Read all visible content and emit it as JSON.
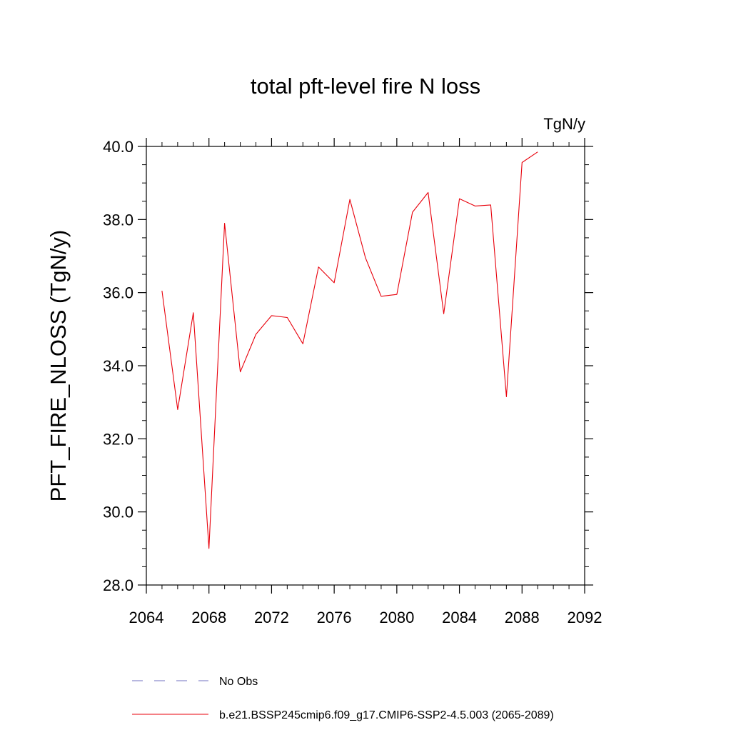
{
  "chart_data": {
    "type": "line",
    "title": "total pft-level fire N loss",
    "units_label": "TgN/y",
    "ylabel": "PFT_FIRE_NLOSS  (TgN/y)",
    "xlabel": "",
    "xlim": [
      2064,
      2092
    ],
    "ylim": [
      28.0,
      40.0
    ],
    "x_ticks": [
      2064,
      2068,
      2072,
      2076,
      2080,
      2084,
      2088,
      2092
    ],
    "x_tick_labels": [
      "2064",
      "2068",
      "2072",
      "2076",
      "2080",
      "2084",
      "2088",
      "2092"
    ],
    "y_ticks": [
      28.0,
      30.0,
      32.0,
      34.0,
      36.0,
      38.0,
      40.0
    ],
    "y_tick_labels": [
      "28.0",
      "30.0",
      "32.0",
      "34.0",
      "36.0",
      "38.0",
      "40.0"
    ],
    "grid": false,
    "legend_position": "bottom",
    "series": [
      {
        "name": "b.e21.BSSP245cmip6.f09_g17.CMIP6-SSP2-4.5.003 (2065-2089)",
        "color": "#e8000b",
        "style": "solid",
        "x": [
          2065,
          2066,
          2067,
          2068,
          2069,
          2070,
          2071,
          2072,
          2073,
          2074,
          2075,
          2076,
          2077,
          2078,
          2079,
          2080,
          2081,
          2082,
          2083,
          2084,
          2085,
          2086,
          2087,
          2088,
          2089
        ],
        "values": [
          36.05,
          32.8,
          35.45,
          29.0,
          37.9,
          33.83,
          34.86,
          35.37,
          35.32,
          34.6,
          36.7,
          36.27,
          38.55,
          36.95,
          35.9,
          35.95,
          38.2,
          38.74,
          35.42,
          38.57,
          38.37,
          38.4,
          33.15,
          39.56,
          39.85
        ]
      }
    ],
    "legend": [
      {
        "label": "No Obs",
        "color": "#7070c0",
        "style": "dashed"
      },
      {
        "label": "b.e21.BSSP245cmip6.f09_g17.CMIP6-SSP2-4.5.003 (2065-2089)",
        "color": "#e8000b",
        "style": "solid"
      }
    ]
  }
}
